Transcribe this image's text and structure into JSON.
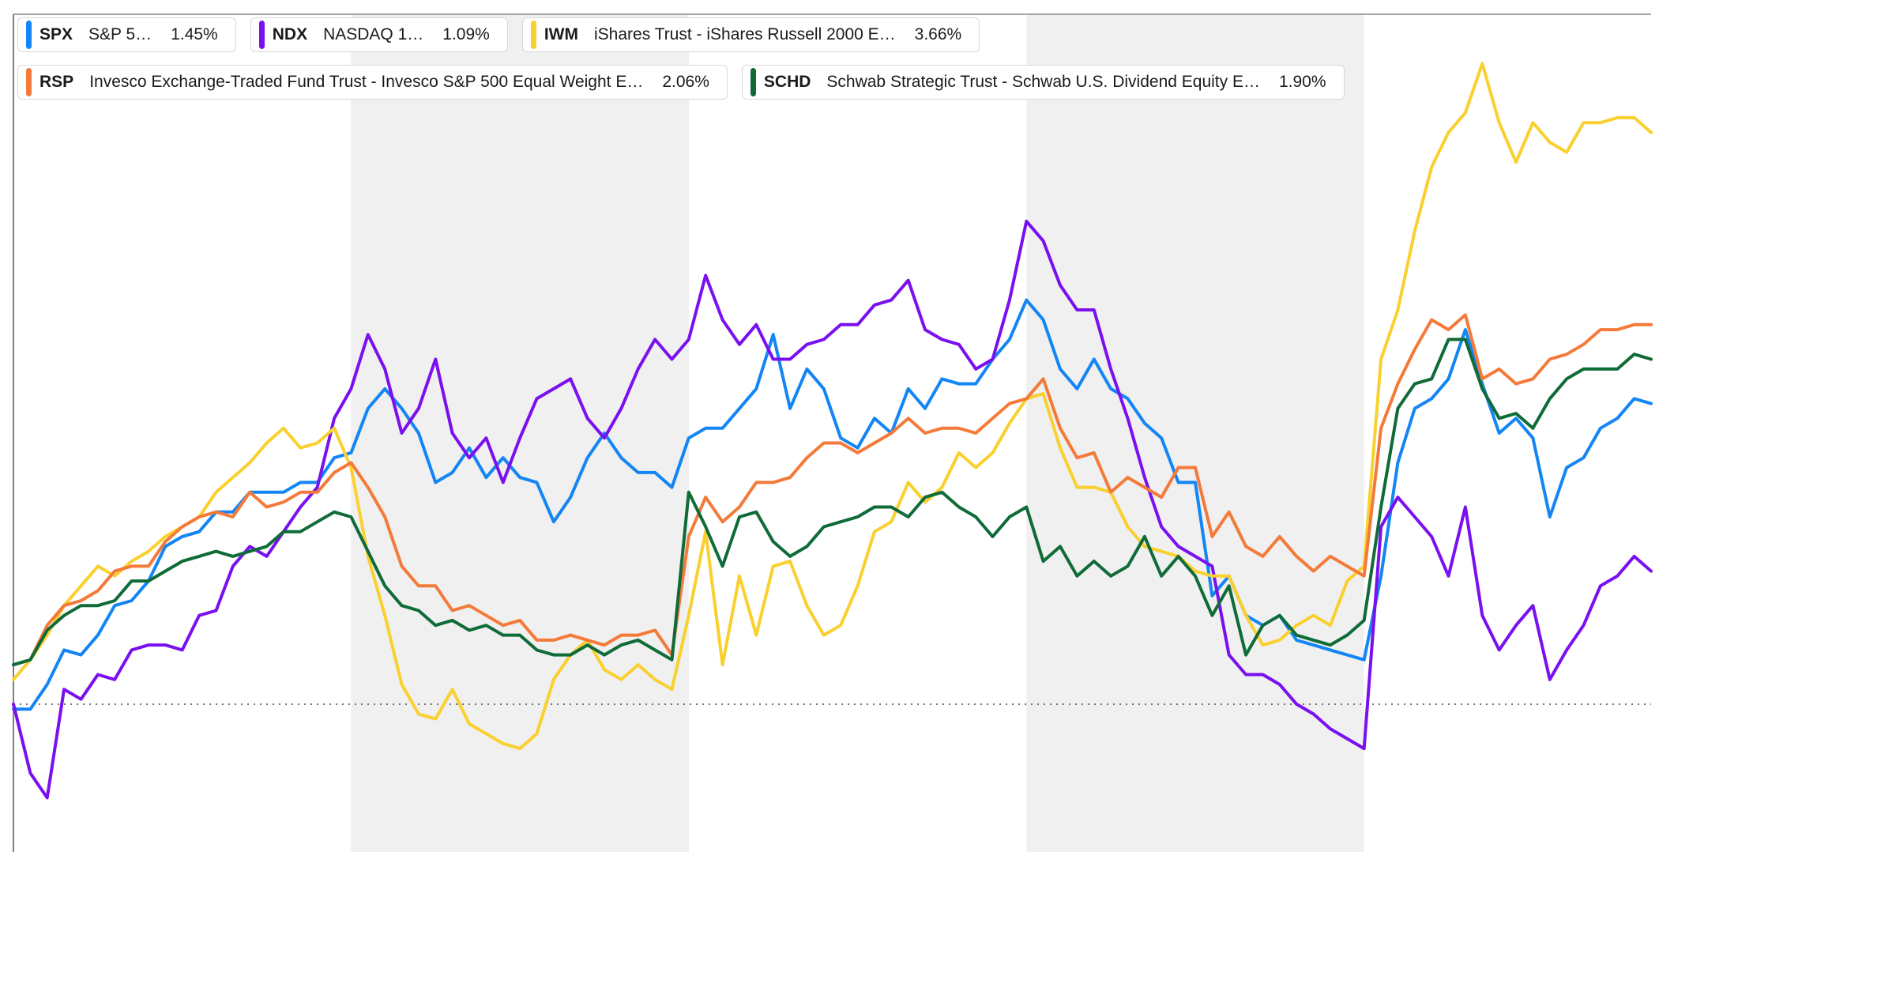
{
  "legend": {
    "rows": [
      [
        {
          "symbol": "SPX",
          "name": "S&P 5…",
          "pct": "1.45%",
          "color": "#1385f5"
        },
        {
          "symbol": "NDX",
          "name": "NASDAQ 1…",
          "pct": "1.09%",
          "color": "#7a10f0"
        },
        {
          "symbol": "IWM",
          "name": "iShares Trust - iShares Russell 2000 E…",
          "pct": "3.66%",
          "color": "#fad02e"
        }
      ],
      [
        {
          "symbol": "RSP",
          "name": "Invesco Exchange-Traded Fund Trust - Invesco S&P 500 Equal Weight E…",
          "pct": "2.06%",
          "color": "#f47a3a"
        },
        {
          "symbol": "SCHD",
          "name": "Schwab Strategic Trust - Schwab U.S. Dividend Equity E…",
          "pct": "1.90%",
          "color": "#0f6b37"
        }
      ]
    ]
  },
  "chart_data": {
    "type": "line",
    "x": [
      0,
      1,
      2,
      3,
      4,
      5,
      6,
      7,
      8,
      9,
      10,
      11,
      12,
      13,
      14,
      15,
      16,
      17,
      18,
      19,
      20,
      21,
      22,
      23,
      24,
      25,
      26,
      27,
      28,
      29,
      30,
      31,
      32,
      33,
      34,
      35,
      36,
      37,
      38,
      39,
      40,
      41,
      42,
      43,
      44,
      45,
      46,
      47,
      48,
      49,
      50,
      51,
      52,
      53,
      54,
      55,
      56,
      57,
      58,
      59,
      60,
      61,
      62,
      63,
      64,
      65,
      66,
      67,
      68,
      69,
      70,
      71,
      72,
      73,
      74,
      75,
      76,
      77,
      78,
      79,
      80,
      81,
      82,
      83,
      84,
      85,
      86,
      87,
      88,
      89,
      90,
      91,
      92,
      93,
      94,
      95,
      96,
      97
    ],
    "xlim": [
      0,
      97
    ],
    "ylim": [
      -3.0,
      14.0
    ],
    "baseline": 0,
    "shaded_bands": [
      [
        20,
        40
      ],
      [
        60,
        80
      ]
    ],
    "grid": false,
    "legend_position": "top-left",
    "series": [
      {
        "name": "SPX",
        "color": "#1385f5",
        "values": [
          -0.1,
          -0.1,
          0.4,
          1.1,
          1.0,
          1.4,
          2.0,
          2.1,
          2.5,
          3.2,
          3.4,
          3.5,
          3.9,
          3.9,
          4.3,
          4.3,
          4.3,
          4.5,
          4.5,
          5.0,
          5.1,
          6.0,
          6.4,
          6.0,
          5.5,
          4.5,
          4.7,
          5.2,
          4.6,
          5.0,
          4.6,
          4.5,
          3.7,
          4.2,
          5.0,
          5.5,
          5.0,
          4.7,
          4.7,
          4.4,
          5.4,
          5.6,
          5.6,
          6.0,
          6.4,
          7.5,
          6.0,
          6.8,
          6.4,
          5.4,
          5.2,
          5.8,
          5.5,
          6.4,
          6.0,
          6.6,
          6.5,
          6.5,
          7.0,
          7.4,
          8.2,
          7.8,
          6.8,
          6.4,
          7.0,
          6.4,
          6.2,
          5.7,
          5.4,
          4.5,
          4.5,
          2.2,
          2.6,
          1.8,
          1.6,
          1.8,
          1.3,
          1.2,
          1.1,
          1.0,
          0.9,
          2.6,
          4.9,
          6.0,
          6.2,
          6.6,
          7.6,
          6.5,
          5.5,
          5.8,
          5.4,
          3.8,
          4.8,
          5.0,
          5.6,
          5.8,
          6.2,
          6.1
        ]
      },
      {
        "name": "NDX",
        "color": "#7a10f0",
        "values": [
          0.0,
          -1.4,
          -1.9,
          0.3,
          0.1,
          0.6,
          0.5,
          1.1,
          1.2,
          1.2,
          1.1,
          1.8,
          1.9,
          2.8,
          3.2,
          3.0,
          3.5,
          4.0,
          4.4,
          5.8,
          6.4,
          7.5,
          6.8,
          5.5,
          6.0,
          7.0,
          5.5,
          5.0,
          5.4,
          4.5,
          5.4,
          6.2,
          6.4,
          6.6,
          5.8,
          5.4,
          6.0,
          6.8,
          7.4,
          7.0,
          7.4,
          8.7,
          7.8,
          7.3,
          7.7,
          7.0,
          7.0,
          7.3,
          7.4,
          7.7,
          7.7,
          8.1,
          8.2,
          8.6,
          7.6,
          7.4,
          7.3,
          6.8,
          7.0,
          8.2,
          9.8,
          9.4,
          8.5,
          8.0,
          8.0,
          6.8,
          5.8,
          4.6,
          3.6,
          3.2,
          3.0,
          2.8,
          1.0,
          0.6,
          0.6,
          0.4,
          0.0,
          -0.2,
          -0.5,
          -0.7,
          -0.9,
          3.6,
          4.2,
          3.8,
          3.4,
          2.6,
          4.0,
          1.8,
          1.1,
          1.6,
          2.0,
          0.5,
          1.1,
          1.6,
          2.4,
          2.6,
          3.0,
          2.7
        ]
      },
      {
        "name": "IWM",
        "color": "#fad02e",
        "values": [
          0.5,
          0.9,
          1.4,
          2.0,
          2.4,
          2.8,
          2.6,
          2.9,
          3.1,
          3.4,
          3.6,
          3.8,
          4.3,
          4.6,
          4.9,
          5.3,
          5.6,
          5.2,
          5.3,
          5.6,
          4.8,
          3.0,
          1.8,
          0.4,
          -0.2,
          -0.3,
          0.3,
          -0.4,
          -0.6,
          -0.8,
          -0.9,
          -0.6,
          0.5,
          1.0,
          1.3,
          0.7,
          0.5,
          0.8,
          0.5,
          0.3,
          1.8,
          3.5,
          0.8,
          2.6,
          1.4,
          2.8,
          2.9,
          2.0,
          1.4,
          1.6,
          2.4,
          3.5,
          3.7,
          4.5,
          4.1,
          4.4,
          5.1,
          4.8,
          5.1,
          5.7,
          6.2,
          6.3,
          5.2,
          4.4,
          4.4,
          4.3,
          3.6,
          3.2,
          3.1,
          3.0,
          2.7,
          2.6,
          2.6,
          1.8,
          1.2,
          1.3,
          1.6,
          1.8,
          1.6,
          2.5,
          2.8,
          7.0,
          8.0,
          9.6,
          10.9,
          11.6,
          12.0,
          13.0,
          11.8,
          11.0,
          11.8,
          11.4,
          11.2,
          11.8,
          11.8,
          11.9,
          11.9,
          11.6
        ]
      },
      {
        "name": "RSP",
        "color": "#f47a3a",
        "values": [
          0.8,
          0.9,
          1.6,
          2.0,
          2.1,
          2.3,
          2.7,
          2.8,
          2.8,
          3.3,
          3.6,
          3.8,
          3.9,
          3.8,
          4.3,
          4.0,
          4.1,
          4.3,
          4.3,
          4.7,
          4.9,
          4.4,
          3.8,
          2.8,
          2.4,
          2.4,
          1.9,
          2.0,
          1.8,
          1.6,
          1.7,
          1.3,
          1.3,
          1.4,
          1.3,
          1.2,
          1.4,
          1.4,
          1.5,
          1.0,
          3.4,
          4.2,
          3.7,
          4.0,
          4.5,
          4.5,
          4.6,
          5.0,
          5.3,
          5.3,
          5.1,
          5.3,
          5.5,
          5.8,
          5.5,
          5.6,
          5.6,
          5.5,
          5.8,
          6.1,
          6.2,
          6.6,
          5.6,
          5.0,
          5.1,
          4.3,
          4.6,
          4.4,
          4.2,
          4.8,
          4.8,
          3.4,
          3.9,
          3.2,
          3.0,
          3.4,
          3.0,
          2.7,
          3.0,
          2.8,
          2.6,
          5.6,
          6.5,
          7.2,
          7.8,
          7.6,
          7.9,
          6.6,
          6.8,
          6.5,
          6.6,
          7.0,
          7.1,
          7.3,
          7.6,
          7.6,
          7.7,
          7.7
        ]
      },
      {
        "name": "SCHD",
        "color": "#0f6b37",
        "values": [
          0.8,
          0.9,
          1.5,
          1.8,
          2.0,
          2.0,
          2.1,
          2.5,
          2.5,
          2.7,
          2.9,
          3.0,
          3.1,
          3.0,
          3.1,
          3.2,
          3.5,
          3.5,
          3.7,
          3.9,
          3.8,
          3.1,
          2.4,
          2.0,
          1.9,
          1.6,
          1.7,
          1.5,
          1.6,
          1.4,
          1.4,
          1.1,
          1.0,
          1.0,
          1.2,
          1.0,
          1.2,
          1.3,
          1.1,
          0.9,
          4.3,
          3.6,
          2.8,
          3.8,
          3.9,
          3.3,
          3.0,
          3.2,
          3.6,
          3.7,
          3.8,
          4.0,
          4.0,
          3.8,
          4.2,
          4.3,
          4.0,
          3.8,
          3.4,
          3.8,
          4.0,
          2.9,
          3.2,
          2.6,
          2.9,
          2.6,
          2.8,
          3.4,
          2.6,
          3.0,
          2.6,
          1.8,
          2.4,
          1.0,
          1.6,
          1.8,
          1.4,
          1.3,
          1.2,
          1.4,
          1.7,
          4.0,
          6.0,
          6.5,
          6.6,
          7.4,
          7.4,
          6.4,
          5.8,
          5.9,
          5.6,
          6.2,
          6.6,
          6.8,
          6.8,
          6.8,
          7.1,
          7.0
        ]
      }
    ]
  }
}
